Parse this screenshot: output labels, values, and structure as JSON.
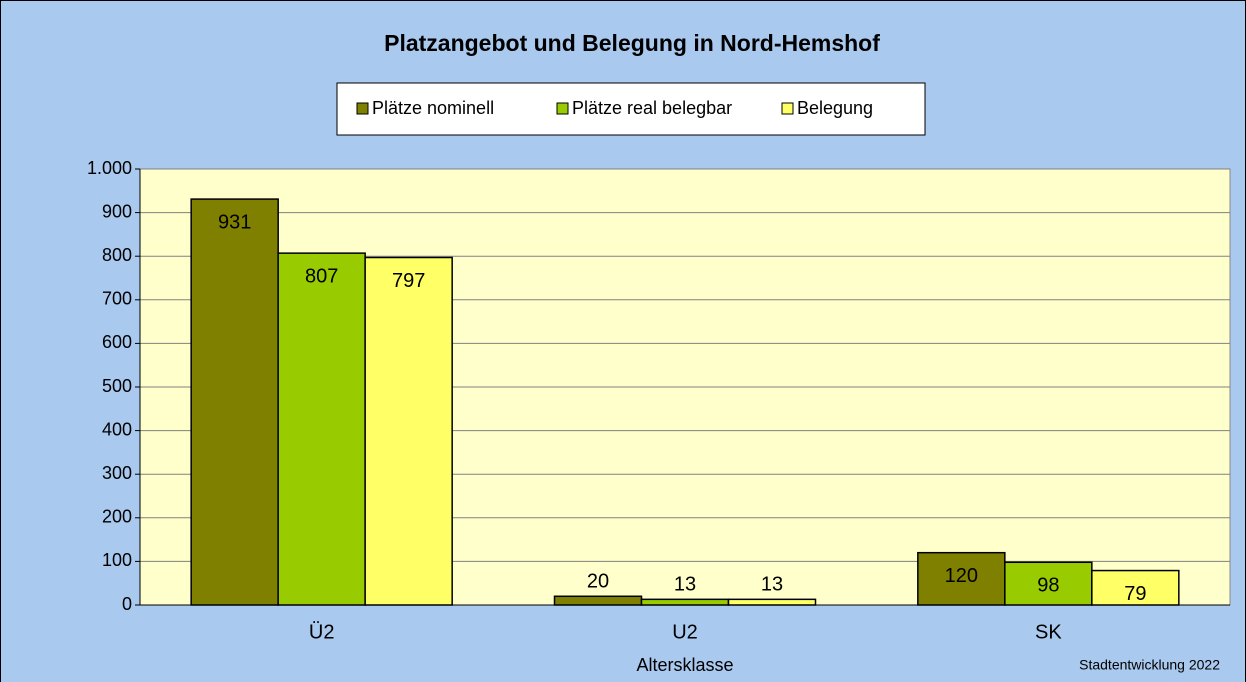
{
  "chart_data": {
    "type": "bar",
    "title": "Platzangebot und Belegung in Nord-Hemshof",
    "x_label": "Altersklasse",
    "annotation": "Stadtentwicklung 2022",
    "categories": [
      "Ü2",
      "U2",
      "SK"
    ],
    "series": [
      {
        "name": "Plätze nominell",
        "color": "#808000",
        "values": [
          931,
          20,
          120
        ]
      },
      {
        "name": "Plätze real belegbar",
        "color": "#99cc00",
        "values": [
          807,
          13,
          98
        ]
      },
      {
        "name": "Belegung",
        "color": "#ffff66",
        "values": [
          797,
          13,
          79
        ]
      }
    ],
    "ylim": [
      0,
      1000
    ],
    "yticks": [
      0,
      100,
      200,
      300,
      400,
      500,
      600,
      700,
      800,
      900,
      {
        "value": 1000,
        "label": "1.000"
      }
    ],
    "grid": true,
    "legend": "top"
  }
}
